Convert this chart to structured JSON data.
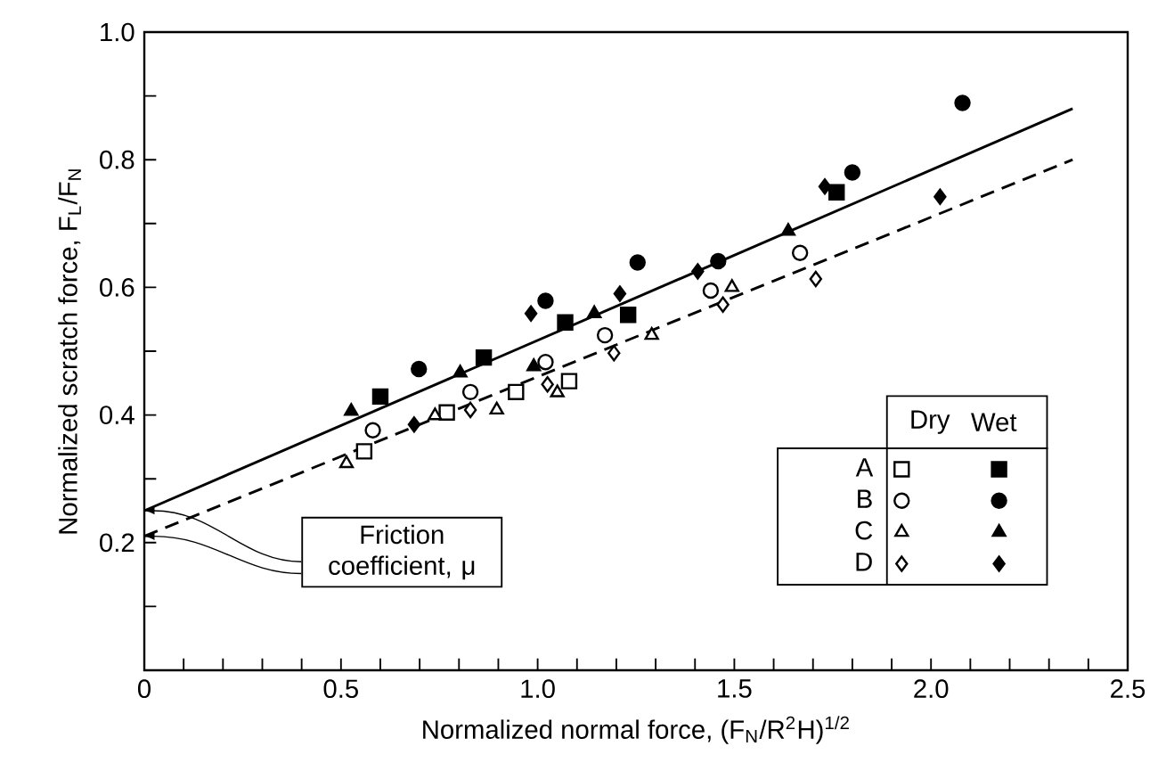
{
  "chart_data": {
    "type": "scatter",
    "xlabel": "Normalized normal force, (F$_{N}$/R$^{2}$H)$^{1/2}$",
    "ylabel": "Normalized scratch force, F$_{L}$/F$_{N}$",
    "xlim": [
      0,
      2.5
    ],
    "ylim": [
      0,
      1
    ],
    "xticks": [
      0,
      {
        "value": 0.1,
        "label": null
      },
      {
        "value": 0.2,
        "label": null
      },
      {
        "value": 0.3,
        "label": null
      },
      {
        "value": 0.4,
        "label": null
      },
      0.5,
      {
        "value": 0.6,
        "label": null
      },
      {
        "value": 0.7,
        "label": null
      },
      {
        "value": 0.8,
        "label": null
      },
      {
        "value": 0.9,
        "label": null
      },
      {
        "value": 1,
        "label": "1.0"
      },
      {
        "value": 1.1,
        "label": null
      },
      {
        "value": 1.2,
        "label": null
      },
      {
        "value": 1.3,
        "label": null
      },
      {
        "value": 1.4,
        "label": null
      },
      1.5,
      {
        "value": 1.6,
        "label": null
      },
      {
        "value": 1.7,
        "label": null
      },
      {
        "value": 1.8,
        "label": null
      },
      {
        "value": 1.9,
        "label": null
      },
      {
        "value": 2,
        "label": "2.0"
      },
      {
        "value": 2.1,
        "label": null
      },
      {
        "value": 2.2,
        "label": null
      },
      {
        "value": 2.3,
        "label": null
      },
      {
        "value": 2.4,
        "label": null
      },
      2.5
    ],
    "yticks": [
      {
        "value": 0.1,
        "label": null
      },
      0.2,
      {
        "value": 0.3,
        "label": null
      },
      0.4,
      {
        "value": 0.5,
        "label": null
      },
      0.6,
      {
        "value": 0.7,
        "label": null
      },
      0.8,
      {
        "value": 0.9,
        "label": null
      },
      {
        "value": 1,
        "label": "1.0"
      }
    ],
    "legend": "bottom right",
    "annotations": [
      "Dry",
      "Wet",
      {
        "text": "Friction coefficient, μ",
        "x": 0,
        "y": 0.25
      }
    ],
    "series": [
      {
        "name": "A",
        "marker": "square",
        "color": "#000000",
        "x": [
          0.559,
          0.769,
          0.945,
          1.08
        ],
        "values": [
          0.343,
          0.404,
          0.436,
          0.453
        ]
      },
      {
        "marker": "square",
        "color": "#000000",
        "x": [
          0.6,
          0.863,
          1.07,
          1.23,
          1.76
        ],
        "values": [
          0.429,
          0.49,
          0.545,
          0.557,
          0.749
        ]
      },
      {
        "name": "B",
        "marker": "circle",
        "color": "#000000",
        "x": [
          0.581,
          0.829,
          1.02,
          1.171,
          1.44,
          1.667
        ],
        "values": [
          0.376,
          0.436,
          0.483,
          0.525,
          0.595,
          0.654
        ]
      },
      {
        "marker": "circle",
        "color": "#000000",
        "x": [
          0.698,
          1.02,
          1.254,
          1.459,
          1.8,
          2.08
        ],
        "values": [
          0.472,
          0.579,
          0.639,
          0.641,
          0.78,
          0.889
        ]
      },
      {
        "name": "C",
        "marker": "triangle",
        "color": "#000000",
        "x": [
          0.514,
          0.739,
          0.896,
          1.05,
          1.29,
          1.494
        ],
        "values": [
          0.324,
          0.399,
          0.408,
          0.435,
          0.525,
          0.6
        ]
      },
      {
        "marker": "triangle",
        "color": "#000000",
        "x": [
          0.526,
          0.803,
          0.99,
          1.144,
          1.637
        ],
        "values": [
          0.406,
          0.466,
          0.476,
          0.559,
          0.688
        ]
      },
      {
        "name": "D",
        "marker": "diamond",
        "color": "#000000",
        "x": [
          0.829,
          1.025,
          1.194,
          1.471,
          1.707
        ],
        "values": [
          0.408,
          0.448,
          0.497,
          0.573,
          0.613
        ]
      },
      {
        "marker": "diamond",
        "color": "#000000",
        "x": [
          0.686,
          0.983,
          1.209,
          1.407,
          1.73,
          2.023
        ],
        "values": [
          0.385,
          0.559,
          0.59,
          0.625,
          0.758,
          0.742
        ]
      },
      {
        "type": "line",
        "line_style": "solid",
        "color": "#000000",
        "x": [
          0,
          2.36
        ],
        "values": [
          0.25,
          0.88
        ]
      },
      {
        "type": "line",
        "line_style": "dashed",
        "color": "#000000",
        "x": [
          0,
          2.36
        ],
        "values": [
          0.21,
          0.8
        ]
      }
    ]
  }
}
